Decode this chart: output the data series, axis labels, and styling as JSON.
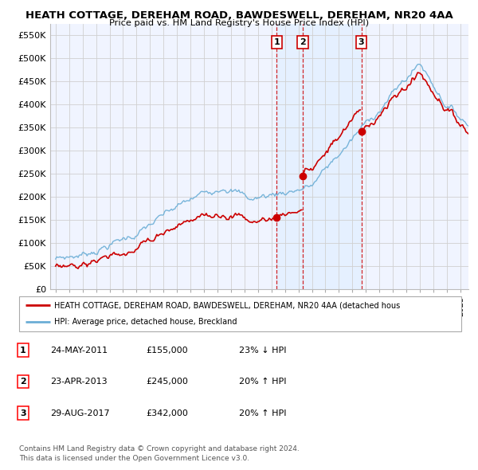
{
  "title": "HEATH COTTAGE, DEREHAM ROAD, BAWDESWELL, DEREHAM, NR20 4AA",
  "subtitle": "Price paid vs. HM Land Registry's House Price Index (HPI)",
  "ylim": [
    0,
    575000
  ],
  "yticks": [
    0,
    50000,
    100000,
    150000,
    200000,
    250000,
    300000,
    350000,
    400000,
    450000,
    500000,
    550000
  ],
  "ytick_labels": [
    "£0",
    "£50K",
    "£100K",
    "£150K",
    "£200K",
    "£250K",
    "£300K",
    "£350K",
    "£400K",
    "£450K",
    "£500K",
    "£550K"
  ],
  "hpi_color": "#6baed6",
  "price_color": "#cc0000",
  "vline_color": "#cc0000",
  "shade_color": "#ddeeff",
  "background_color": "#ffffff",
  "grid_color": "#d0d0d0",
  "xlim_start": 1994.6,
  "xlim_end": 2025.6,
  "sales": [
    {
      "date_num": 2011.39,
      "price": 155000,
      "label": "1"
    },
    {
      "date_num": 2013.32,
      "price": 245000,
      "label": "2"
    },
    {
      "date_num": 2017.66,
      "price": 342000,
      "label": "3"
    }
  ],
  "legend_entry_red": "HEATH COTTAGE, DEREHAM ROAD, BAWDESWELL, DEREHAM, NR20 4AA (detached hous",
  "legend_entry_blue": "HPI: Average price, detached house, Breckland",
  "table_rows": [
    {
      "num": "1",
      "date": "24-MAY-2011",
      "price": "£155,000",
      "hpi": "23% ↓ HPI"
    },
    {
      "num": "2",
      "date": "23-APR-2013",
      "price": "£245,000",
      "hpi": "20% ↑ HPI"
    },
    {
      "num": "3",
      "date": "29-AUG-2017",
      "price": "£342,000",
      "hpi": "20% ↑ HPI"
    }
  ],
  "footer": "Contains HM Land Registry data © Crown copyright and database right 2024.\nThis data is licensed under the Open Government Licence v3.0."
}
